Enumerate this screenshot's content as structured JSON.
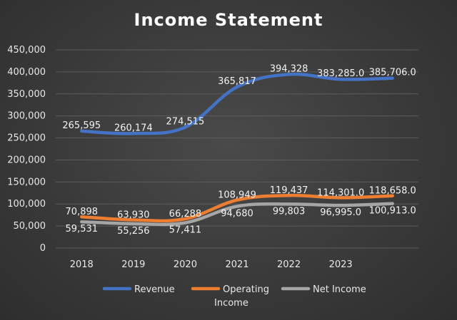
{
  "chart_data": {
    "type": "line",
    "title": "Income Statement",
    "x": [
      "2018",
      "2019",
      "2020",
      "2021",
      "2022",
      "2023",
      ""
    ],
    "ylim": [
      0,
      450000
    ],
    "yticks": [
      "450,000",
      "400,000",
      "350,000",
      "300,000",
      "250,000",
      "200,000",
      "150,000",
      "100,000",
      "50,000",
      "0"
    ],
    "grid": true,
    "legend_position": "bottom",
    "series": [
      {
        "name": "Revenue",
        "color": "#4472c4",
        "values": [
          265595,
          260174,
          274515,
          365817,
          394328,
          383285,
          385706
        ],
        "labels": [
          "265,595",
          "260,174",
          "274,515",
          "365,817",
          "394,328",
          "383,285.0",
          "385,706.0"
        ]
      },
      {
        "name": "Operating Income",
        "color": "#ed7d31",
        "values": [
          70898,
          63930,
          66288,
          108949,
          119437,
          114301,
          118658
        ],
        "labels": [
          "70,898",
          "63,930",
          "66,288",
          "108,949",
          "119,437",
          "114,301.0",
          "118,658.0"
        ]
      },
      {
        "name": "Net Income",
        "color": "#a5a5a5",
        "values": [
          59531,
          55256,
          57411,
          94680,
          99803,
          96995,
          100913
        ],
        "labels": [
          "59,531",
          "55,256",
          "57,411",
          "94,680",
          "99,803",
          "96,995.0",
          "100,913.0"
        ]
      }
    ]
  }
}
